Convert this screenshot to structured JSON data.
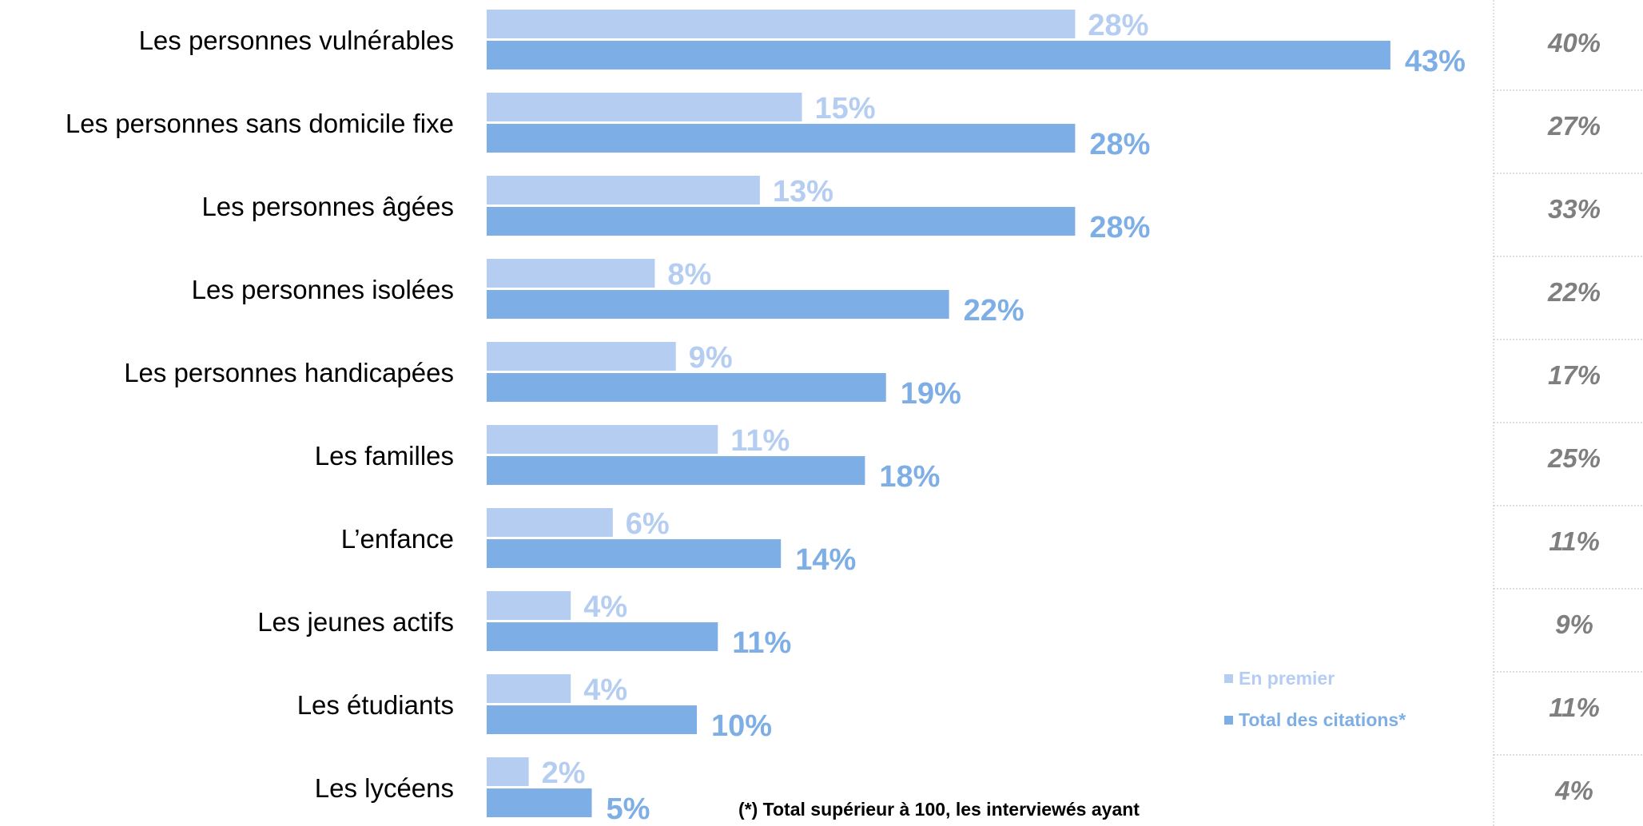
{
  "colors": {
    "first": "#b4cdf1",
    "total": "#7eaee6",
    "right_values": "#7f7f7f",
    "divider": "#bfbfbf"
  },
  "chart_data": {
    "type": "bar",
    "orientation": "horizontal",
    "categories": [
      "Les personnes vulnérables",
      "Les personnes sans domicile fixe",
      "Les personnes âgées",
      "Les personnes isolées",
      "Les personnes handicapées",
      "Les familles",
      "L’enfance",
      "Les jeunes actifs",
      "Les étudiants",
      "Les lycéens"
    ],
    "series": [
      {
        "name": "En premier",
        "values": [
          28,
          15,
          13,
          8,
          9,
          11,
          6,
          4,
          4,
          2
        ]
      },
      {
        "name": "Total des citations*",
        "values": [
          43,
          28,
          28,
          22,
          19,
          18,
          14,
          11,
          10,
          5
        ]
      }
    ],
    "value_suffix": "%",
    "right_column_values": [
      "40%",
      "27%",
      "33%",
      "22%",
      "17%",
      "25%",
      "11%",
      "9%",
      "11%",
      "4%"
    ],
    "legend": {
      "position": "bottom-right",
      "items": [
        "En premier",
        "Total des citations*"
      ]
    },
    "footnote": "(*) Total supérieur à 100, les interviewés ayant",
    "grid": false
  }
}
